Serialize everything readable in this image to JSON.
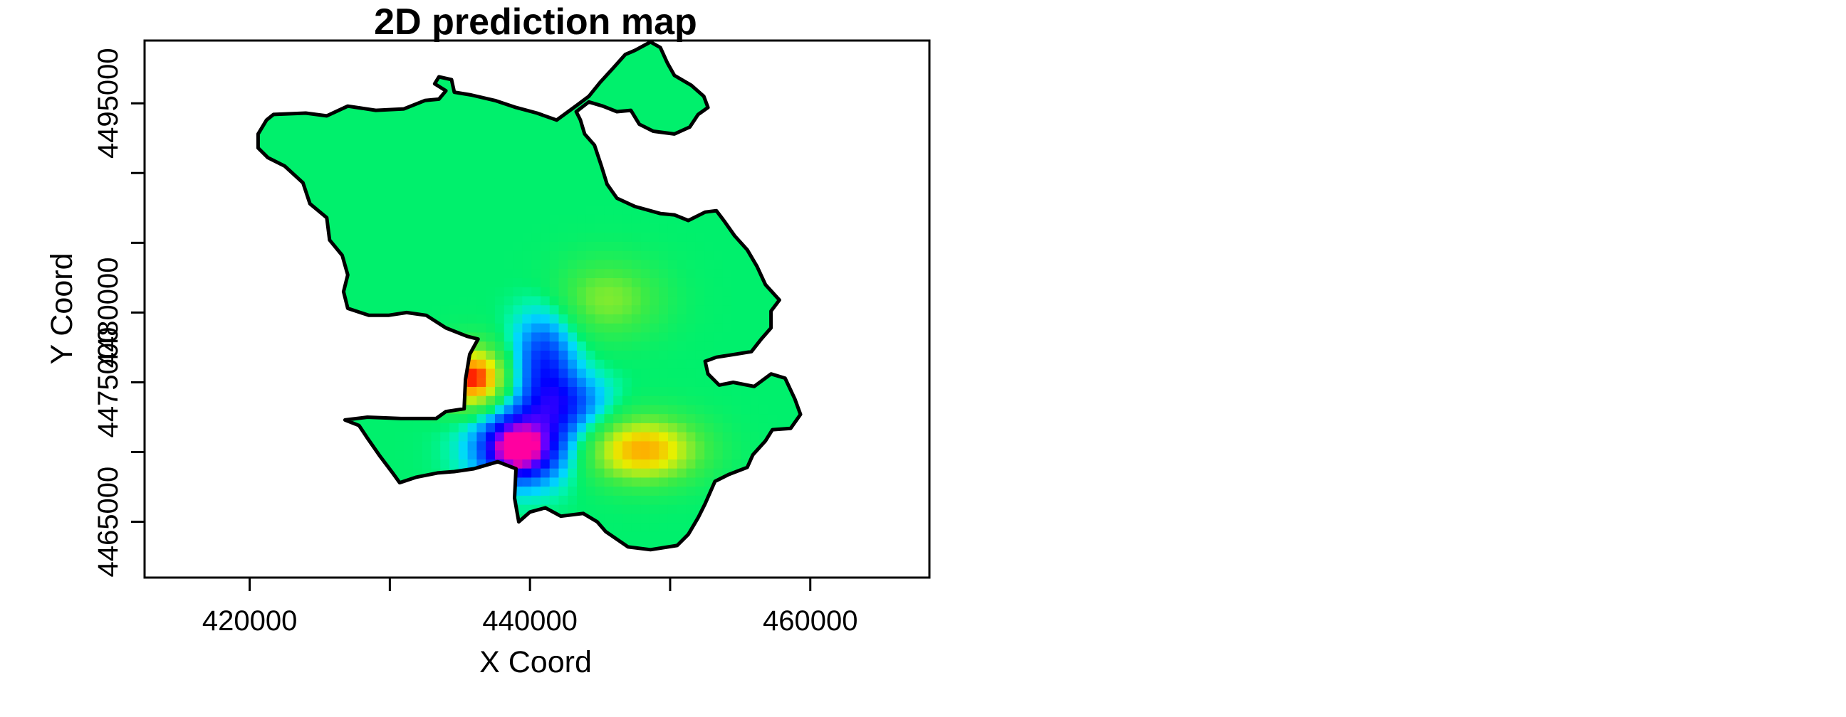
{
  "chart_data": {
    "type": "heatmap",
    "title": "2D prediction map",
    "xlabel": "X Coord",
    "ylabel": "Y Coord",
    "xlim": [
      412500,
      468500
    ],
    "ylim": [
      4461000,
      4499500
    ],
    "x_ticks": [
      420000,
      430000,
      440000,
      450000,
      460000
    ],
    "x_tick_labels": [
      "420000",
      "",
      "440000",
      "",
      "460000"
    ],
    "y_ticks": [
      4465000,
      4470000,
      4475000,
      4480000,
      4485000,
      4490000,
      4495000
    ],
    "y_tick_labels": [
      "4465000",
      "",
      "4475000",
      "4480000",
      "",
      "",
      "4495000"
    ],
    "grid": false,
    "legend": "none",
    "colors": {
      "background_field": "#00f06c",
      "hot_spot": "#ff0000",
      "warm_spot": "#ffa000",
      "cold_spot": "#0000ff",
      "minimum_spot": "#ff00a0",
      "boundary": "#000000"
    },
    "features": [
      {
        "kind": "hot",
        "x": 436000,
        "y": 4475300,
        "sx": 1700,
        "sy": 1600,
        "amp": 1.0
      },
      {
        "kind": "warm",
        "x": 448000,
        "y": 4470200,
        "sx": 3000,
        "sy": 1700,
        "amp": 0.8
      },
      {
        "kind": "cold",
        "x": 439500,
        "y": 4470500,
        "sx": 2400,
        "sy": 1900,
        "amp": 1.05
      },
      {
        "kind": "cold",
        "x": 441000,
        "y": 4476500,
        "sx": 1600,
        "sy": 2600,
        "amp": 0.65
      },
      {
        "kind": "cold",
        "x": 443000,
        "y": 4473500,
        "sx": 2000,
        "sy": 1500,
        "amp": 0.45
      },
      {
        "kind": "light",
        "x": 445500,
        "y": 4481000,
        "sx": 2800,
        "sy": 2000,
        "amp": 0.4
      },
      {
        "kind": "minimum",
        "x": 439000,
        "y": 4470200,
        "sx": 1200,
        "sy": 1100,
        "amp": 1.0
      }
    ],
    "boundary": [
      [
        425500,
        4494100
      ],
      [
        427000,
        4494800
      ],
      [
        429000,
        4494500
      ],
      [
        431000,
        4494600
      ],
      [
        432500,
        4495200
      ],
      [
        433500,
        4495300
      ],
      [
        434000,
        4495900
      ],
      [
        433200,
        4496400
      ],
      [
        433500,
        4496900
      ],
      [
        434400,
        4496700
      ],
      [
        434600,
        4495800
      ],
      [
        435800,
        4495600
      ],
      [
        437500,
        4495200
      ],
      [
        439000,
        4494700
      ],
      [
        440500,
        4494300
      ],
      [
        441900,
        4493800
      ],
      [
        443400,
        4494900
      ],
      [
        444200,
        4495500
      ],
      [
        445000,
        4496500
      ],
      [
        446000,
        4497600
      ],
      [
        446800,
        4498500
      ],
      [
        447500,
        4498800
      ],
      [
        448600,
        4499400
      ],
      [
        449300,
        4499000
      ],
      [
        449800,
        4497900
      ],
      [
        450300,
        4497000
      ],
      [
        451500,
        4496300
      ],
      [
        452400,
        4495500
      ],
      [
        452700,
        4494700
      ],
      [
        452000,
        4494200
      ],
      [
        451400,
        4493300
      ],
      [
        450300,
        4492800
      ],
      [
        448800,
        4493000
      ],
      [
        447800,
        4493500
      ],
      [
        447200,
        4494500
      ],
      [
        446200,
        4494400
      ],
      [
        445200,
        4494800
      ],
      [
        444200,
        4495100
      ],
      [
        443300,
        4494400
      ],
      [
        443600,
        4493800
      ],
      [
        443900,
        4492800
      ],
      [
        444600,
        4492000
      ],
      [
        445100,
        4490500
      ],
      [
        445500,
        4489200
      ],
      [
        446200,
        4488200
      ],
      [
        447500,
        4487600
      ],
      [
        449300,
        4487100
      ],
      [
        450300,
        4487000
      ],
      [
        451300,
        4486600
      ],
      [
        452500,
        4487200
      ],
      [
        453300,
        4487300
      ],
      [
        453900,
        4486500
      ],
      [
        454600,
        4485500
      ],
      [
        455500,
        4484500
      ],
      [
        456200,
        4483300
      ],
      [
        456800,
        4482000
      ],
      [
        457800,
        4480900
      ],
      [
        457200,
        4480100
      ],
      [
        457200,
        4478900
      ],
      [
        456500,
        4478100
      ],
      [
        455800,
        4477200
      ],
      [
        454600,
        4477000
      ],
      [
        453300,
        4476800
      ],
      [
        452500,
        4476500
      ],
      [
        452700,
        4475600
      ],
      [
        453500,
        4474800
      ],
      [
        454500,
        4475000
      ],
      [
        456000,
        4474700
      ],
      [
        457200,
        4475600
      ],
      [
        458200,
        4475300
      ],
      [
        458900,
        4473800
      ],
      [
        459300,
        4472700
      ],
      [
        458600,
        4471700
      ],
      [
        457300,
        4471600
      ],
      [
        456800,
        4470800
      ],
      [
        455900,
        4469800
      ],
      [
        455500,
        4468900
      ],
      [
        454200,
        4468400
      ],
      [
        453200,
        4467900
      ],
      [
        452500,
        4466300
      ],
      [
        452000,
        4465300
      ],
      [
        451300,
        4464100
      ],
      [
        450500,
        4463300
      ],
      [
        448600,
        4463000
      ],
      [
        447000,
        4463200
      ],
      [
        445400,
        4464300
      ],
      [
        444800,
        4465000
      ],
      [
        443800,
        4465600
      ],
      [
        442200,
        4465400
      ],
      [
        441100,
        4466000
      ],
      [
        440000,
        4465700
      ],
      [
        439200,
        4465000
      ],
      [
        438900,
        4466700
      ],
      [
        439000,
        4468800
      ],
      [
        437700,
        4469300
      ],
      [
        436000,
        4468800
      ],
      [
        434600,
        4468600
      ],
      [
        433400,
        4468500
      ],
      [
        431900,
        4468200
      ],
      [
        430700,
        4467800
      ],
      [
        430200,
        4468500
      ],
      [
        429300,
        4469700
      ],
      [
        428400,
        4471000
      ],
      [
        427800,
        4471900
      ],
      [
        426800,
        4472300
      ],
      [
        428400,
        4472500
      ],
      [
        430800,
        4472400
      ],
      [
        433300,
        4472400
      ],
      [
        434000,
        4472900
      ],
      [
        435300,
        4473100
      ],
      [
        435400,
        4475200
      ],
      [
        435700,
        4477000
      ],
      [
        436300,
        4478100
      ],
      [
        435500,
        4478300
      ],
      [
        434000,
        4478900
      ],
      [
        432600,
        4479800
      ],
      [
        431200,
        4480000
      ],
      [
        429900,
        4479800
      ],
      [
        428500,
        4479800
      ],
      [
        427000,
        4480300
      ],
      [
        426700,
        4481500
      ],
      [
        427000,
        4482700
      ],
      [
        426600,
        4484100
      ],
      [
        425700,
        4485200
      ],
      [
        425500,
        4486800
      ],
      [
        424300,
        4487800
      ],
      [
        423800,
        4489300
      ],
      [
        422500,
        4490500
      ],
      [
        421300,
        4491100
      ],
      [
        420600,
        4491800
      ],
      [
        420600,
        4492800
      ],
      [
        421200,
        4493800
      ],
      [
        421700,
        4494200
      ],
      [
        424000,
        4494300
      ]
    ]
  }
}
